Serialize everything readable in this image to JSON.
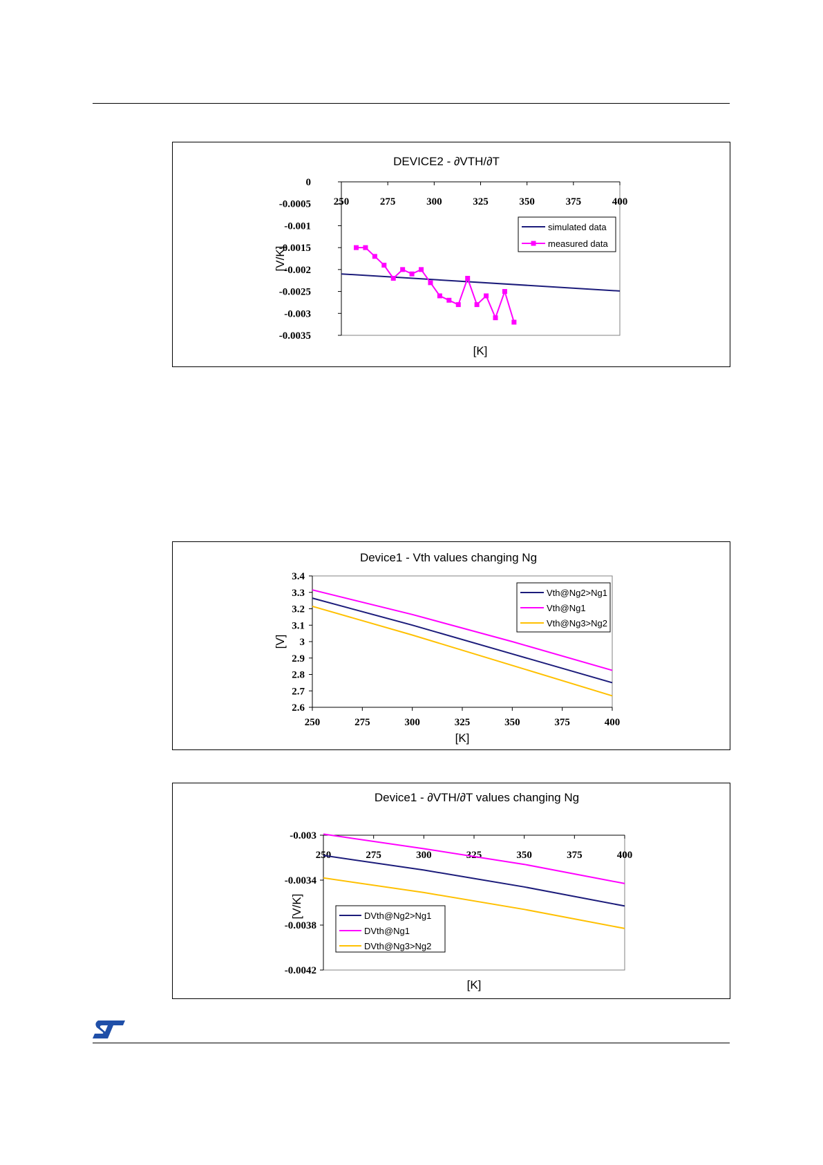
{
  "colors": {
    "navy": "#1b1b7a",
    "magenta": "#ff00ff",
    "gold": "#ffc000"
  },
  "logo": {
    "icon": "st-logo"
  },
  "chart_data": [
    {
      "type": "line",
      "title": "DEVICE2 - ∂VTH/∂T",
      "xlabel": "[K]",
      "ylabel": "[V/K]",
      "xlim": [
        250,
        400
      ],
      "ylim": [
        -0.0035,
        0
      ],
      "x_ticks": [
        "250",
        "275",
        "300",
        "325",
        "350",
        "375",
        "400"
      ],
      "y_ticks": [
        "0",
        "-0.0005",
        "-0.001",
        "-0.0015",
        "-0.002",
        "-0.0025",
        "-0.003",
        "-0.0035"
      ],
      "y_tick_values": [
        0,
        -0.0005,
        -0.001,
        -0.0015,
        -0.002,
        -0.0025,
        -0.003,
        -0.0035
      ],
      "legend_position": "right",
      "series": [
        {
          "name": "simulated data",
          "color": "#1b1b7a",
          "marker": false,
          "x": [
            250,
            400
          ],
          "y": [
            -0.0021,
            -0.00249
          ]
        },
        {
          "name": "measured data",
          "color": "#ff00ff",
          "marker": true,
          "x": [
            258,
            263,
            268,
            273,
            278,
            283,
            288,
            293,
            298,
            303,
            308,
            313,
            318,
            323,
            328,
            333,
            338,
            343
          ],
          "y": [
            -0.0015,
            -0.0015,
            -0.0017,
            -0.0019,
            -0.0022,
            -0.002,
            -0.0021,
            -0.002,
            -0.0023,
            -0.0026,
            -0.0027,
            -0.0028,
            -0.0022,
            -0.0028,
            -0.0026,
            -0.0031,
            -0.0025,
            -0.0032
          ]
        }
      ]
    },
    {
      "type": "line",
      "title": "Device1 - Vth values changing Ng",
      "xlabel": "[K]",
      "ylabel": "[V]",
      "xlim": [
        250,
        400
      ],
      "ylim": [
        2.6,
        3.4
      ],
      "x_ticks": [
        "250",
        "275",
        "300",
        "325",
        "350",
        "375",
        "400"
      ],
      "y_ticks": [
        "3.4",
        "3.3",
        "3.2",
        "3.1",
        "3",
        "2.9",
        "2.8",
        "2.7",
        "2.6"
      ],
      "y_tick_values": [
        3.4,
        3.3,
        3.2,
        3.1,
        3.0,
        2.9,
        2.8,
        2.7,
        2.6
      ],
      "legend_position": "top-right",
      "series": [
        {
          "name": "Vth@Ng2>Ng1",
          "color": "#1b1b7a",
          "x": [
            250,
            300,
            350,
            400
          ],
          "y": [
            3.265,
            3.1,
            2.925,
            2.75
          ]
        },
        {
          "name": "Vth@Ng1",
          "color": "#ff00ff",
          "x": [
            250,
            300,
            350,
            400
          ],
          "y": [
            3.315,
            3.165,
            3.0,
            2.825
          ]
        },
        {
          "name": "Vth@Ng3>Ng2",
          "color": "#ffc000",
          "x": [
            250,
            300,
            350,
            400
          ],
          "y": [
            3.215,
            3.04,
            2.855,
            2.67
          ]
        }
      ]
    },
    {
      "type": "line",
      "title": "Device1 - ∂VTH/∂T values changing Ng",
      "xlabel": "[K]",
      "ylabel": "[V/K]",
      "xlim": [
        250,
        400
      ],
      "ylim": [
        -0.0042,
        -0.003
      ],
      "x_ticks": [
        "250",
        "275",
        "300",
        "325",
        "350",
        "375",
        "400"
      ],
      "y_ticks": [
        "-0.003",
        "-0.0034",
        "-0.0038",
        "-0.0042"
      ],
      "y_tick_values": [
        -0.003,
        -0.0034,
        -0.0038,
        -0.0042
      ],
      "legend_position": "bottom-left",
      "series": [
        {
          "name": "DVth@Ng2>Ng1",
          "color": "#1b1b7a",
          "x": [
            250,
            300,
            350,
            400
          ],
          "y": [
            -0.00318,
            -0.00331,
            -0.00346,
            -0.00363
          ]
        },
        {
          "name": "DVth@Ng1",
          "color": "#ff00ff",
          "x": [
            250,
            300,
            350,
            400
          ],
          "y": [
            -0.00299,
            -0.00312,
            -0.00326,
            -0.00343
          ]
        },
        {
          "name": "DVth@Ng3>Ng2",
          "color": "#ffc000",
          "x": [
            250,
            300,
            350,
            400
          ],
          "y": [
            -0.00338,
            -0.00351,
            -0.00366,
            -0.00383
          ]
        }
      ]
    }
  ]
}
